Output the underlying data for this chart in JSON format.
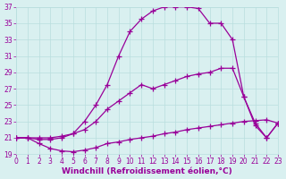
{
  "background_color": "#d9f0f0",
  "grid_color": "#b8dede",
  "line_color": "#990099",
  "marker": "+",
  "markersize": 4,
  "linewidth": 0.9,
  "xlabel": "Windchill (Refroidissement éolien,°C)",
  "xlabel_fontsize": 6.5,
  "tick_fontsize": 5.5,
  "ylim": [
    19,
    37
  ],
  "xlim": [
    0,
    23
  ],
  "yticks": [
    19,
    21,
    23,
    25,
    27,
    29,
    31,
    33,
    35,
    37
  ],
  "xticks": [
    0,
    1,
    2,
    3,
    4,
    5,
    6,
    7,
    8,
    9,
    10,
    11,
    12,
    13,
    14,
    15,
    16,
    17,
    18,
    19,
    20,
    21,
    22,
    23
  ],
  "line1_x": [
    0,
    1,
    2,
    3,
    4,
    5,
    6,
    7,
    8,
    9,
    10,
    11,
    12,
    13,
    14,
    15,
    16,
    17,
    18,
    19,
    20,
    21,
    22,
    23
  ],
  "line1_y": [
    21.0,
    21.0,
    20.3,
    19.7,
    19.4,
    19.3,
    19.5,
    19.8,
    20.3,
    20.5,
    20.8,
    21.0,
    21.2,
    21.5,
    21.7,
    22.0,
    22.2,
    22.4,
    22.6,
    22.8,
    23.0,
    23.1,
    23.2,
    22.8
  ],
  "line2_x": [
    0,
    1,
    2,
    3,
    4,
    5,
    6,
    7,
    8,
    9,
    10,
    11,
    12,
    13,
    14,
    15,
    16,
    17,
    18,
    19,
    20,
    21,
    22,
    23
  ],
  "line2_y": [
    21.0,
    21.0,
    21.0,
    21.0,
    21.2,
    21.5,
    22.0,
    23.0,
    24.5,
    25.5,
    26.5,
    27.5,
    27.0,
    27.5,
    28.0,
    28.5,
    28.8,
    29.0,
    29.5,
    29.5,
    26.0,
    22.8,
    21.0,
    22.8
  ],
  "line3_x": [
    0,
    1,
    2,
    3,
    4,
    5,
    6,
    7,
    8,
    9,
    10,
    11,
    12,
    13,
    14,
    15,
    16,
    17,
    18,
    19,
    20,
    21,
    22,
    23
  ],
  "line3_y": [
    21.0,
    21.0,
    20.8,
    20.8,
    21.0,
    21.5,
    23.0,
    25.0,
    27.5,
    31.0,
    34.0,
    35.5,
    36.5,
    37.0,
    37.0,
    37.0,
    36.8,
    35.0,
    35.0,
    33.0,
    26.0,
    22.5,
    21.0,
    22.8
  ]
}
